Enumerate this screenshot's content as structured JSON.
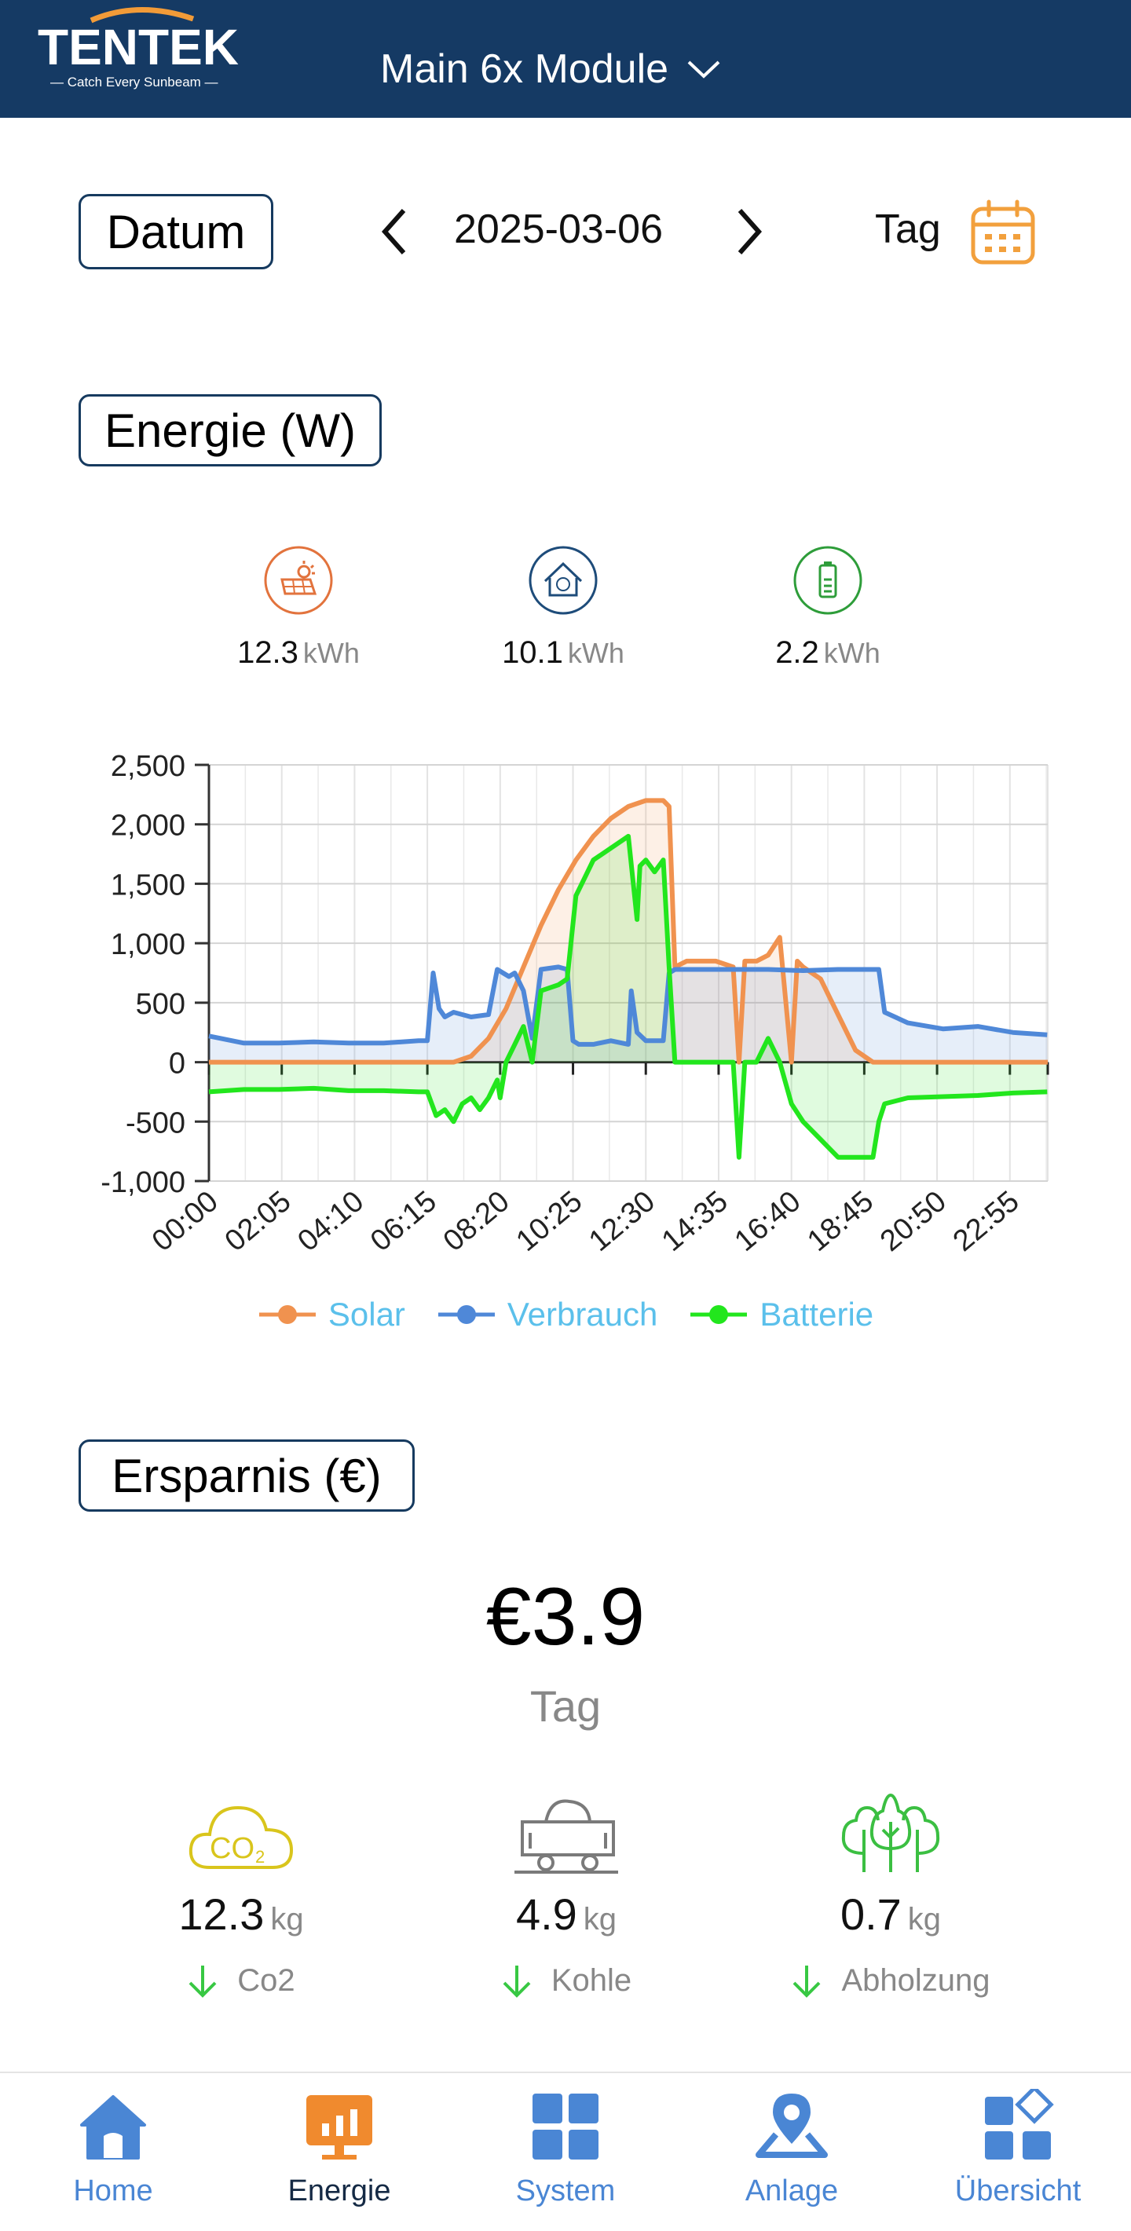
{
  "header": {
    "brand": "TENTEK",
    "tagline": "— Catch Every Sunbeam —",
    "device_title": "Main 6x Module"
  },
  "date_section": {
    "label": "Datum",
    "date": "2025-03-06",
    "mode": "Tag"
  },
  "energy": {
    "title": "Energie (W)",
    "stats": [
      {
        "value": "12.3",
        "unit": "kWh",
        "icon": "solar-panel-icon",
        "color": "#e2733d"
      },
      {
        "value": "10.1",
        "unit": "kWh",
        "icon": "home-consumption-icon",
        "color": "#1e4c7a"
      },
      {
        "value": "2.2",
        "unit": "kWh",
        "icon": "battery-icon",
        "color": "#2e9d3a"
      }
    ]
  },
  "chart_data": {
    "type": "line",
    "title": "",
    "xlabel": "",
    "ylabel": "",
    "ylim": [
      -1000,
      2500
    ],
    "yticks": [
      "2,500",
      "2,000",
      "1,500",
      "1,000",
      "500",
      "0",
      "-500",
      "-1,000"
    ],
    "xtick_labels": [
      "00:00",
      "02:05",
      "04:10",
      "06:15",
      "08:20",
      "10:25",
      "12:30",
      "14:35",
      "16:40",
      "18:45",
      "20:50",
      "22:55"
    ],
    "legend_position": "bottom",
    "grid": true,
    "series": [
      {
        "name": "Solar",
        "color": "#f0924f",
        "x": [
          "00:00",
          "06:30",
          "07:00",
          "07:30",
          "08:00",
          "08:30",
          "09:00",
          "09:30",
          "10:00",
          "10:30",
          "11:00",
          "11:30",
          "12:00",
          "12:30",
          "13:00",
          "13:10",
          "13:20",
          "13:40",
          "14:00",
          "14:30",
          "15:00",
          "15:10",
          "15:20",
          "15:40",
          "16:00",
          "16:20",
          "16:40",
          "16:50",
          "17:00",
          "17:30",
          "18:00",
          "18:30",
          "19:00",
          "24:00"
        ],
        "y": [
          0,
          0,
          0,
          50,
          200,
          450,
          800,
          1150,
          1450,
          1700,
          1900,
          2050,
          2150,
          2200,
          2200,
          2150,
          800,
          850,
          850,
          850,
          800,
          0,
          850,
          850,
          900,
          1050,
          0,
          850,
          800,
          700,
          400,
          100,
          0,
          0
        ]
      },
      {
        "name": "Verbrauch",
        "color": "#4f88d8",
        "x": [
          "00:00",
          "01:00",
          "02:00",
          "03:00",
          "04:00",
          "05:00",
          "06:00",
          "06:15",
          "06:25",
          "06:35",
          "06:45",
          "07:00",
          "07:30",
          "08:00",
          "08:15",
          "08:25",
          "08:35",
          "08:45",
          "09:00",
          "09:15",
          "09:30",
          "10:00",
          "10:15",
          "10:25",
          "10:35",
          "11:00",
          "11:30",
          "12:00",
          "12:05",
          "12:15",
          "12:30",
          "13:00",
          "13:10",
          "13:20",
          "14:00",
          "15:00",
          "16:00",
          "17:00",
          "18:00",
          "19:00",
          "19:10",
          "19:20",
          "20:00",
          "21:00",
          "22:00",
          "23:00",
          "23:59"
        ],
        "y": [
          220,
          160,
          160,
          170,
          160,
          160,
          180,
          180,
          750,
          450,
          380,
          420,
          380,
          400,
          780,
          750,
          720,
          750,
          600,
          200,
          780,
          800,
          780,
          180,
          150,
          150,
          180,
          150,
          600,
          250,
          180,
          180,
          750,
          780,
          780,
          780,
          780,
          770,
          780,
          780,
          780,
          420,
          330,
          280,
          300,
          250,
          230
        ]
      },
      {
        "name": "Batterie",
        "color": "#22e61d",
        "x": [
          "00:00",
          "01:00",
          "02:00",
          "03:00",
          "04:00",
          "05:00",
          "06:00",
          "06:15",
          "06:30",
          "06:45",
          "07:00",
          "07:15",
          "07:30",
          "07:45",
          "08:00",
          "08:15",
          "08:20",
          "08:30",
          "08:45",
          "09:00",
          "09:15",
          "09:30",
          "10:00",
          "10:15",
          "10:30",
          "10:45",
          "11:00",
          "11:30",
          "12:00",
          "12:15",
          "12:20",
          "12:30",
          "12:45",
          "13:00",
          "13:10",
          "13:20",
          "14:00",
          "14:30",
          "15:00",
          "15:10",
          "15:20",
          "15:40",
          "16:00",
          "16:20",
          "16:40",
          "17:00",
          "17:30",
          "18:00",
          "18:30",
          "19:00",
          "19:10",
          "19:20",
          "20:00",
          "21:00",
          "22:00",
          "23:00",
          "23:59"
        ],
        "y": [
          -250,
          -230,
          -230,
          -220,
          -240,
          -240,
          -250,
          -250,
          -450,
          -400,
          -500,
          -350,
          -300,
          -400,
          -300,
          -150,
          -300,
          0,
          150,
          300,
          0,
          600,
          650,
          700,
          1400,
          1550,
          1700,
          1800,
          1900,
          1200,
          1650,
          1700,
          1600,
          1700,
          800,
          0,
          0,
          0,
          0,
          -800,
          0,
          0,
          200,
          0,
          -350,
          -500,
          -650,
          -800,
          -800,
          -800,
          -500,
          -350,
          -300,
          -290,
          -280,
          -260,
          -250
        ]
      }
    ]
  },
  "savings": {
    "title": "Ersparnis (€)",
    "value": "€3.9",
    "period": "Tag",
    "items": [
      {
        "value": "12.3",
        "unit": "kg",
        "label": "Co2",
        "icon": "co2-cloud-icon"
      },
      {
        "value": "4.9",
        "unit": "kg",
        "label": "Kohle",
        "icon": "coal-cart-icon"
      },
      {
        "value": "0.7",
        "unit": "kg",
        "label": "Abholzung",
        "icon": "trees-icon"
      }
    ]
  },
  "tabs": [
    {
      "label": "Home",
      "icon": "home-icon",
      "active": false
    },
    {
      "label": "Energie",
      "icon": "energy-chart-icon",
      "active": true
    },
    {
      "label": "System",
      "icon": "system-grid-icon",
      "active": false
    },
    {
      "label": "Anlage",
      "icon": "location-pin-icon",
      "active": false
    },
    {
      "label": "Übersicht",
      "icon": "overview-icon",
      "active": false
    }
  ],
  "colors": {
    "header_bg": "#153a64",
    "accent_orange": "#f2a03d",
    "tab_blue": "#4a86d4",
    "down_arrow_green": "#38c843"
  }
}
